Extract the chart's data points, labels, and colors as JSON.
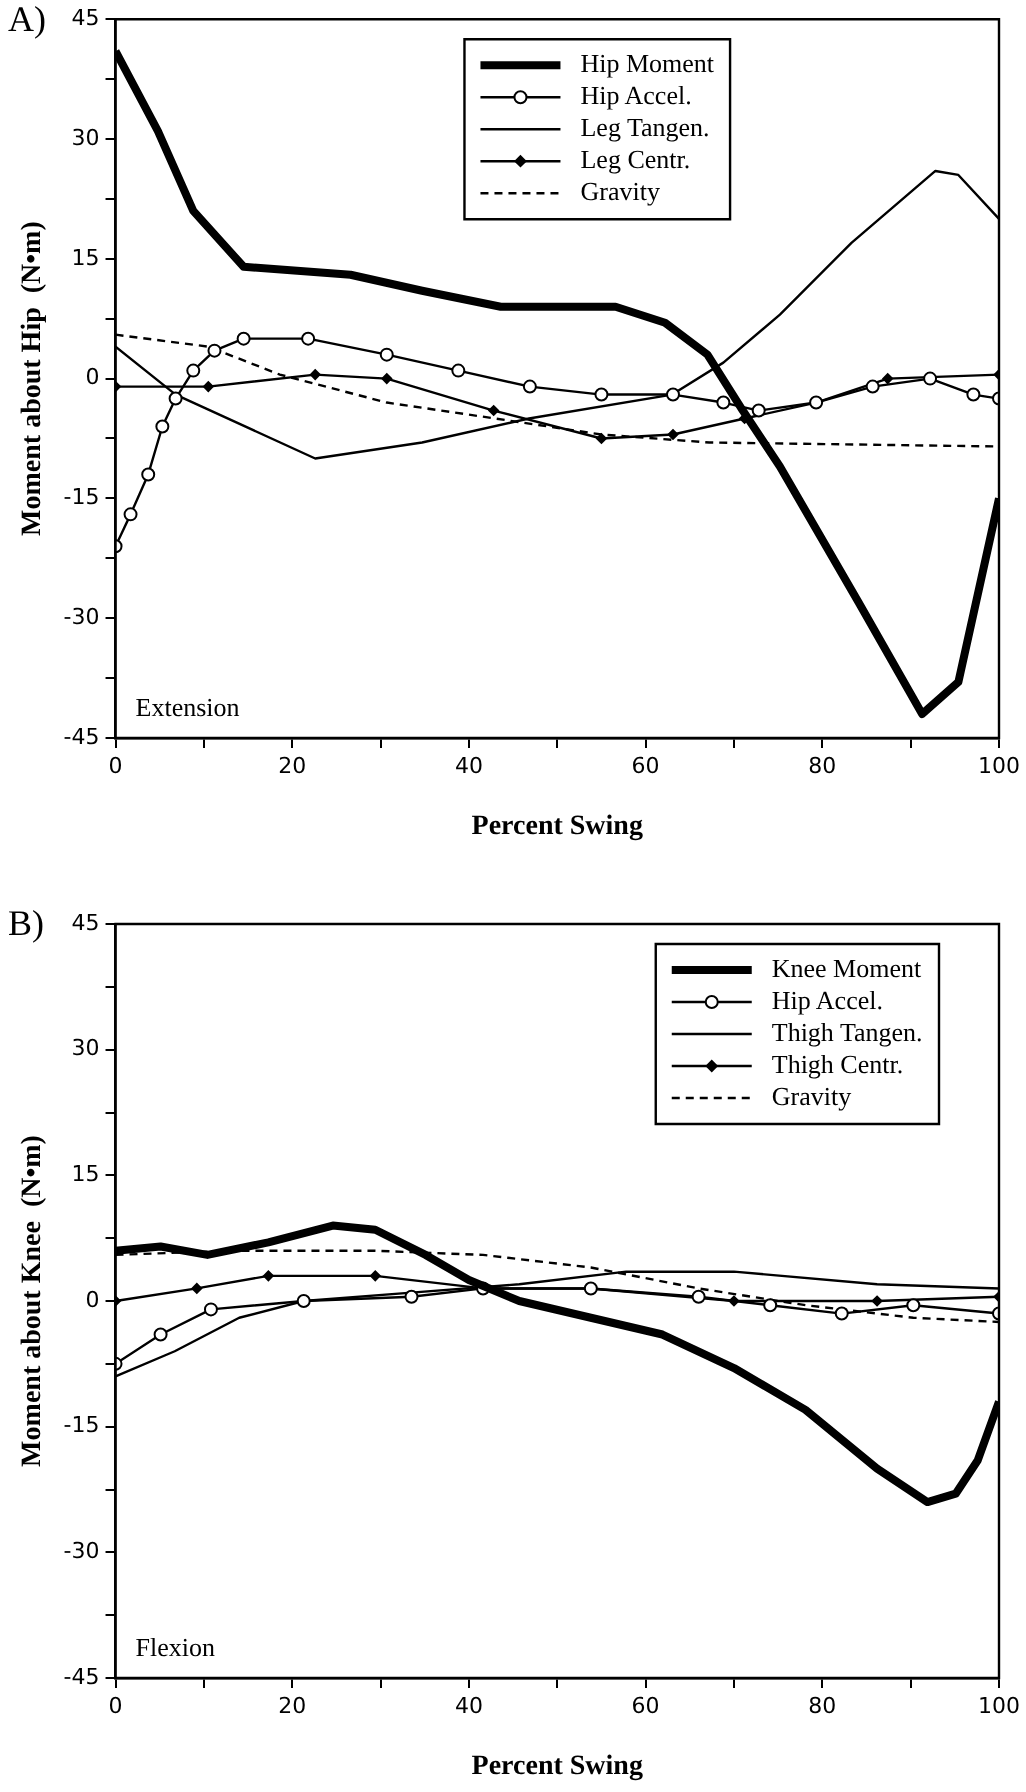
{
  "chart_data": [
    {
      "type": "line",
      "title": "A)",
      "xlabel": "Percent Swing",
      "ylabel": "Moment about Hip  (N•m)",
      "annotations": [
        "Extension"
      ],
      "legend": "top",
      "grid": false,
      "xlim": [
        0,
        100
      ],
      "ylim": [
        -45,
        45
      ],
      "xticks": [
        0,
        {
          "value": 10,
          "label": null
        },
        20,
        {
          "value": 30,
          "label": null
        },
        40,
        {
          "value": 50,
          "label": null
        },
        60,
        {
          "value": 70,
          "label": null
        },
        80,
        {
          "value": 90,
          "label": null
        },
        100
      ],
      "yticks": [
        -45,
        {
          "value": -37.5,
          "label": null
        },
        -30,
        {
          "value": -22.5,
          "label": null
        },
        -15,
        {
          "value": -7.5,
          "label": null
        },
        0,
        {
          "value": 7.5,
          "label": null
        },
        15,
        {
          "value": 22.5,
          "label": null
        },
        30,
        {
          "value": 37.5,
          "label": null
        },
        45
      ],
      "series": [
        {
          "name": "Hip Moment",
          "color": "#000000",
          "marker": "none",
          "line_style": "solid",
          "x": [
            0,
            4.8,
            8.8,
            14.5,
            26.6,
            34.7,
            43.6,
            50,
            56.6,
            62.2,
            67,
            71,
            75.2,
            84.1,
            91.3,
            95.4,
            100
          ],
          "values": [
            41,
            31,
            21,
            14,
            13,
            11,
            9,
            9,
            9,
            7,
            3,
            -4,
            -11,
            -28,
            -42,
            -38,
            -15
          ]
        },
        {
          "name": "Hip Accel.",
          "color": "#000000",
          "marker": "circle",
          "line_style": "solid",
          "x": [
            0,
            1.7,
            3.7,
            5.3,
            6.8,
            8.8,
            11.2,
            14.5,
            21.8,
            30.7,
            38.8,
            46.9,
            55,
            63.1,
            68.8,
            72.8,
            79.3,
            85.7,
            92.2,
            97.1,
            100
          ],
          "values": [
            -21,
            -17,
            -12,
            -6,
            -2.5,
            1,
            3.5,
            5,
            5,
            3,
            1,
            -1,
            -2,
            -2,
            -3,
            -4,
            -3,
            -1,
            0,
            -2,
            -2.5
          ]
        },
        {
          "name": "Leg Tangen.",
          "color": "#000000",
          "marker": "none",
          "line_style": "solid",
          "x": [
            0,
            6.8,
            22.6,
            34.7,
            46.8,
            63,
            68.8,
            75.2,
            83.3,
            92.8,
            95.4,
            100
          ],
          "values": [
            4,
            -2,
            -10,
            -8,
            -5,
            -2,
            2,
            8,
            17,
            26,
            25.5,
            20
          ]
        },
        {
          "name": "Leg Centr.",
          "color": "#000000",
          "marker": "diamond",
          "line_style": "solid",
          "x": [
            0,
            10.5,
            22.6,
            30.7,
            42.8,
            55,
            63.1,
            71.2,
            79.3,
            87.4,
            100
          ],
          "values": [
            -1,
            -1,
            0.5,
            0,
            -4,
            -7.5,
            -7,
            -5,
            -3,
            0,
            0.5
          ]
        },
        {
          "name": "Gravity",
          "color": "#000000",
          "marker": "none",
          "line_style": "dashed",
          "x": [
            0,
            10.5,
            18.6,
            30.7,
            43,
            55,
            67.2,
            100
          ],
          "values": [
            5.5,
            4,
            0.5,
            -3,
            -5,
            -7,
            -8,
            -8.5
          ]
        }
      ]
    },
    {
      "type": "line",
      "title": "B)",
      "xlabel": "Percent Swing",
      "ylabel": "Moment about Knee  (N•m)",
      "annotations": [
        "Flexion"
      ],
      "legend": "top right",
      "grid": false,
      "xlim": [
        0,
        100
      ],
      "ylim": [
        -45,
        45
      ],
      "xticks": [
        0,
        {
          "value": 10,
          "label": null
        },
        20,
        {
          "value": 30,
          "label": null
        },
        40,
        {
          "value": 50,
          "label": null
        },
        60,
        {
          "value": 70,
          "label": null
        },
        80,
        {
          "value": 90,
          "label": null
        },
        100
      ],
      "yticks": [
        -45,
        {
          "value": -37.5,
          "label": null
        },
        -30,
        {
          "value": -22.5,
          "label": null
        },
        -15,
        {
          "value": -7.5,
          "label": null
        },
        0,
        {
          "value": 7.5,
          "label": null
        },
        15,
        {
          "value": 22.5,
          "label": null
        },
        30,
        {
          "value": 37.5,
          "label": null
        },
        45
      ],
      "series": [
        {
          "name": "Knee Moment",
          "color": "#000000",
          "marker": "none",
          "line_style": "solid",
          "x": [
            0,
            5.1,
            10.4,
            17.3,
            24.6,
            29.4,
            35.1,
            40,
            45.7,
            53.8,
            61.9,
            70,
            78.1,
            86.2,
            91.9,
            95.1,
            97.6,
            100
          ],
          "values": [
            6,
            6.5,
            5.5,
            7,
            9,
            8.5,
            5.5,
            2.5,
            0,
            -2,
            -4,
            -8,
            -13,
            -20,
            -24,
            -23,
            -19,
            -12
          ]
        },
        {
          "name": "Hip Accel.",
          "color": "#000000",
          "marker": "circle",
          "line_style": "solid",
          "x": [
            0,
            5.1,
            10.8,
            21.3,
            33.5,
            41.6,
            53.8,
            66,
            74.1,
            82.2,
            90.3,
            100
          ],
          "values": [
            -7.5,
            -4,
            -1,
            0,
            0.5,
            1.5,
            1.5,
            0.5,
            -0.5,
            -1.5,
            -0.5,
            -1.5
          ]
        },
        {
          "name": "Thigh Tangen.",
          "color": "#000000",
          "marker": "none",
          "line_style": "solid",
          "x": [
            0,
            6.7,
            14,
            21.3,
            33.5,
            45.7,
            57.8,
            70,
            86.2,
            100
          ],
          "values": [
            -9,
            -6,
            -2,
            0,
            1,
            2,
            3.5,
            3.5,
            2,
            1.5
          ]
        },
        {
          "name": "Thigh Centr.",
          "color": "#000000",
          "marker": "diamond",
          "line_style": "solid",
          "x": [
            0,
            9.2,
            17.3,
            29.4,
            41.6,
            53.8,
            70,
            86.2,
            100
          ],
          "values": [
            0,
            1.5,
            3,
            3,
            1.5,
            1.5,
            0,
            0,
            0.5
          ]
        },
        {
          "name": "Gravity",
          "color": "#000000",
          "marker": "none",
          "line_style": "dashed",
          "x": [
            0,
            13.2,
            29.4,
            41.6,
            53.8,
            66,
            78.1,
            90.3,
            100
          ],
          "values": [
            5.5,
            6,
            6,
            5.5,
            4,
            1.5,
            -0.5,
            -2,
            -2.5
          ]
        }
      ]
    }
  ]
}
